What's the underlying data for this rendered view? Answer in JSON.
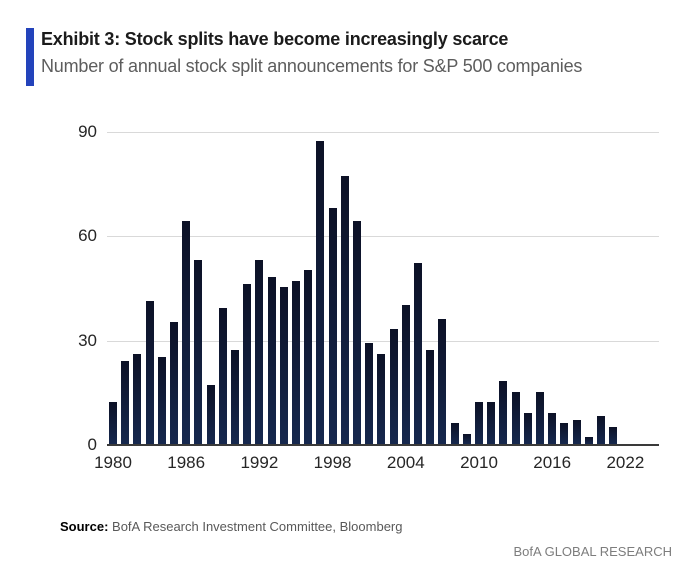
{
  "header": {
    "title": "Exhibit 3: Stock splits have become increasingly scarce",
    "subtitle": "Number of annual stock split announcements for S&P 500 companies"
  },
  "footer": {
    "source_label": "Source:",
    "source_text": " BofA Research Investment Committee, Bloomberg",
    "brand": "BofA GLOBAL RESEARCH"
  },
  "colors": {
    "accent_blue": "#2343bb",
    "bar_top": "#0c1126",
    "bar_bottom": "#16284e",
    "gridline": "#d9d9d9",
    "axis_line": "#3a3a3a"
  },
  "chart_data": {
    "type": "bar",
    "title": "Exhibit 3: Stock splits have become increasingly scarce",
    "subtitle": "Number of annual stock split announcements for S&P 500 companies",
    "xlabel": "",
    "ylabel": "",
    "ylim": [
      0,
      90
    ],
    "yticks": [
      0,
      30,
      60,
      90
    ],
    "xticks": [
      1980,
      1986,
      1992,
      1998,
      2004,
      2010,
      2016,
      2022
    ],
    "grid": "horizontal",
    "legend": "none",
    "x": [
      1980,
      1981,
      1982,
      1983,
      1984,
      1985,
      1986,
      1987,
      1988,
      1989,
      1990,
      1991,
      1992,
      1993,
      1994,
      1995,
      1996,
      1997,
      1998,
      1999,
      2000,
      2001,
      2002,
      2003,
      2004,
      2005,
      2006,
      2007,
      2008,
      2009,
      2010,
      2011,
      2012,
      2013,
      2014,
      2015,
      2016,
      2017,
      2018,
      2019,
      2020,
      2021,
      2022
    ],
    "values": [
      12,
      24,
      26,
      41,
      25,
      35,
      64,
      53,
      17,
      39,
      27,
      46,
      53,
      48,
      45,
      47,
      50,
      87,
      68,
      77,
      64,
      29,
      26,
      33,
      40,
      52,
      27,
      36,
      6,
      3,
      12,
      12,
      18,
      15,
      9,
      15,
      9,
      6,
      7,
      2,
      8,
      5,
      0
    ]
  }
}
